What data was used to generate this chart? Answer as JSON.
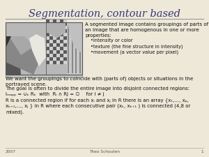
{
  "title": "Segmentation, contour based",
  "bg_color": "#ede8d8",
  "title_color": "#383878",
  "text_color": "#111111",
  "line_color": "#888888",
  "footer_year": "2007",
  "footer_author": "Theo Schouten",
  "footer_page": "1",
  "bullet_intro": "A segmented image contains groupings of parts of\nan image that are homogenous in one or more\nproperties:",
  "bullets": [
    "•intensity or color",
    "•texture (the fine structure in intensity)",
    "•movement (a vector value per pixel)"
  ],
  "para1": "We want the groupings to coincide with (parts of) objects or situations in the\nportrayed scene.",
  "para2": "The goal is often to divide the entire image into disjoint connected regions:",
  "formula": "Iₘₐₚₚ = ∪ₖ Rₖ  with  Rᵢ ∩ Rj = ∅    for i ≠ j",
  "para3": "R is a connected region if for each xᵢ and xⱼ in R there is an array {x₁,..., xₚ,\nxₖ₊₁,..., xⱼ } in R where each consecutive pair (xₖ, xₖ₊₁ ) is connected (4,8 or\nmixed)."
}
